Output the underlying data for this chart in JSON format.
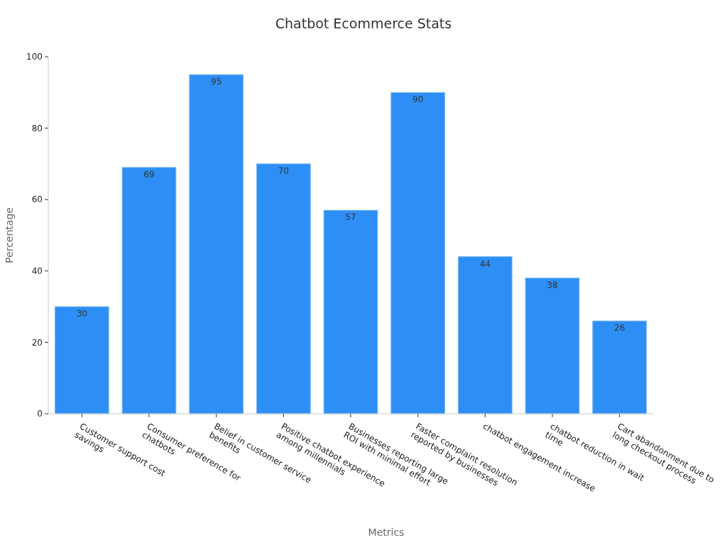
{
  "chart_data": {
    "type": "bar",
    "title": "Chatbot Ecommerce Stats",
    "xlabel": "Metrics",
    "ylabel": "Percentage",
    "categories": [
      "Customer support cost savings",
      "Consumer preference for chatbots",
      "Belief in customer service benefits",
      "Positive chatbot experience among millennials",
      "Businesses reporting large ROI with minimal effort",
      "Faster complaint resolution reported by businesses",
      "chatbot engagement increase",
      "chatbot reduction in wait time",
      "Cart abandonment due to long checkout process"
    ],
    "values": [
      30,
      69,
      95,
      70,
      57,
      90,
      44,
      38,
      26
    ],
    "color": "#2d8ff5",
    "ylim": [
      0,
      100
    ],
    "yticks": [
      0,
      20,
      40,
      60,
      80,
      100
    ],
    "data_labels": true,
    "grid": false
  }
}
